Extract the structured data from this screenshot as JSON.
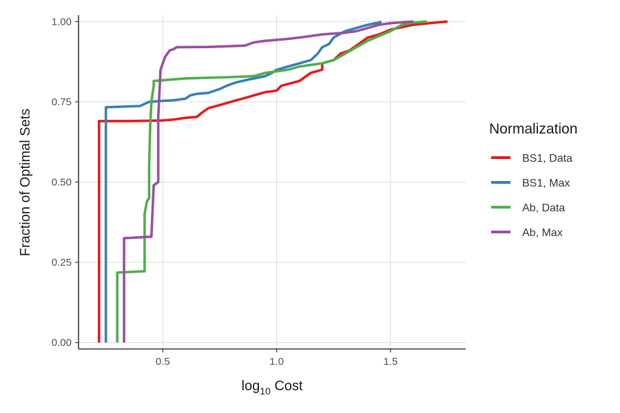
{
  "chart_data": {
    "type": "line",
    "xlabel_main": "log",
    "xlabel_sub": "10",
    "xlabel_rest": " Cost",
    "ylabel": "Fraction of Optimal Sets",
    "xlim": [
      0.13,
      1.83
    ],
    "ylim": [
      -0.02,
      1.02
    ],
    "x_ticks": [
      0.5,
      1.0,
      1.5
    ],
    "x_tick_labels": [
      "0.5",
      "1.0",
      "1.5"
    ],
    "y_ticks": [
      0.0,
      0.25,
      0.5,
      0.75,
      1.0
    ],
    "y_tick_labels": [
      "0.00",
      "0.25",
      "0.50",
      "0.75",
      "1.00"
    ],
    "grid": true,
    "legend": {
      "title": "Normalization",
      "placement": "right"
    },
    "series": [
      {
        "name": "BS1, Data",
        "color": "#E41A1C",
        "points": [
          [
            0.22,
            0.0
          ],
          [
            0.22,
            0.69
          ],
          [
            0.35,
            0.69
          ],
          [
            0.5,
            0.692
          ],
          [
            0.55,
            0.695
          ],
          [
            0.6,
            0.7
          ],
          [
            0.65,
            0.703
          ],
          [
            0.67,
            0.715
          ],
          [
            0.7,
            0.73
          ],
          [
            0.75,
            0.74
          ],
          [
            0.8,
            0.75
          ],
          [
            0.85,
            0.76
          ],
          [
            0.9,
            0.77
          ],
          [
            0.95,
            0.78
          ],
          [
            1.0,
            0.785
          ],
          [
            1.02,
            0.8
          ],
          [
            1.1,
            0.815
          ],
          [
            1.15,
            0.84
          ],
          [
            1.2,
            0.85
          ],
          [
            1.2,
            0.87
          ],
          [
            1.25,
            0.88
          ],
          [
            1.28,
            0.9
          ],
          [
            1.32,
            0.91
          ],
          [
            1.36,
            0.93
          ],
          [
            1.4,
            0.95
          ],
          [
            1.45,
            0.96
          ],
          [
            1.5,
            0.975
          ],
          [
            1.6,
            0.99
          ],
          [
            1.7,
            0.997
          ],
          [
            1.75,
            1.0
          ]
        ]
      },
      {
        "name": "BS1, Max",
        "color": "#377EB8",
        "points": [
          [
            0.25,
            0.0
          ],
          [
            0.25,
            0.733
          ],
          [
            0.4,
            0.737
          ],
          [
            0.44,
            0.75
          ],
          [
            0.5,
            0.753
          ],
          [
            0.55,
            0.755
          ],
          [
            0.6,
            0.76
          ],
          [
            0.62,
            0.77
          ],
          [
            0.65,
            0.775
          ],
          [
            0.7,
            0.778
          ],
          [
            0.75,
            0.79
          ],
          [
            0.78,
            0.8
          ],
          [
            0.82,
            0.81
          ],
          [
            0.88,
            0.82
          ],
          [
            0.95,
            0.83
          ],
          [
            0.98,
            0.84
          ],
          [
            1.0,
            0.85
          ],
          [
            1.05,
            0.86
          ],
          [
            1.1,
            0.87
          ],
          [
            1.15,
            0.88
          ],
          [
            1.18,
            0.9
          ],
          [
            1.2,
            0.92
          ],
          [
            1.23,
            0.93
          ],
          [
            1.25,
            0.95
          ],
          [
            1.3,
            0.97
          ],
          [
            1.35,
            0.98
          ],
          [
            1.4,
            0.99
          ],
          [
            1.45,
            0.997
          ],
          [
            1.46,
            1.0
          ]
        ]
      },
      {
        "name": "Ab, Data",
        "color": "#4DAF4A",
        "points": [
          [
            0.3,
            0.0
          ],
          [
            0.3,
            0.218
          ],
          [
            0.42,
            0.222
          ],
          [
            0.42,
            0.4
          ],
          [
            0.43,
            0.44
          ],
          [
            0.44,
            0.45
          ],
          [
            0.44,
            0.55
          ],
          [
            0.445,
            0.68
          ],
          [
            0.45,
            0.75
          ],
          [
            0.46,
            0.8
          ],
          [
            0.46,
            0.815
          ],
          [
            0.55,
            0.82
          ],
          [
            0.6,
            0.823
          ],
          [
            0.7,
            0.825
          ],
          [
            0.8,
            0.827
          ],
          [
            0.9,
            0.83
          ],
          [
            0.95,
            0.84
          ],
          [
            1.0,
            0.845
          ],
          [
            1.05,
            0.85
          ],
          [
            1.1,
            0.86
          ],
          [
            1.15,
            0.865
          ],
          [
            1.2,
            0.87
          ],
          [
            1.25,
            0.88
          ],
          [
            1.3,
            0.9
          ],
          [
            1.35,
            0.92
          ],
          [
            1.4,
            0.94
          ],
          [
            1.45,
            0.955
          ],
          [
            1.5,
            0.97
          ],
          [
            1.55,
            0.99
          ],
          [
            1.6,
            0.997
          ],
          [
            1.66,
            1.0
          ]
        ]
      },
      {
        "name": "Ab, Max",
        "color": "#984EA3",
        "points": [
          [
            0.33,
            0.0
          ],
          [
            0.33,
            0.325
          ],
          [
            0.45,
            0.33
          ],
          [
            0.46,
            0.49
          ],
          [
            0.48,
            0.5
          ],
          [
            0.48,
            0.7
          ],
          [
            0.49,
            0.85
          ],
          [
            0.5,
            0.87
          ],
          [
            0.51,
            0.89
          ],
          [
            0.52,
            0.9
          ],
          [
            0.53,
            0.91
          ],
          [
            0.55,
            0.915
          ],
          [
            0.56,
            0.92
          ],
          [
            0.7,
            0.921
          ],
          [
            0.86,
            0.925
          ],
          [
            0.9,
            0.935
          ],
          [
            0.95,
            0.94
          ],
          [
            1.0,
            0.943
          ],
          [
            1.05,
            0.946
          ],
          [
            1.1,
            0.95
          ],
          [
            1.15,
            0.955
          ],
          [
            1.2,
            0.96
          ],
          [
            1.3,
            0.965
          ],
          [
            1.35,
            0.97
          ],
          [
            1.4,
            0.98
          ],
          [
            1.45,
            0.99
          ],
          [
            1.5,
            0.995
          ],
          [
            1.55,
            0.998
          ],
          [
            1.6,
            1.0
          ]
        ]
      }
    ]
  }
}
